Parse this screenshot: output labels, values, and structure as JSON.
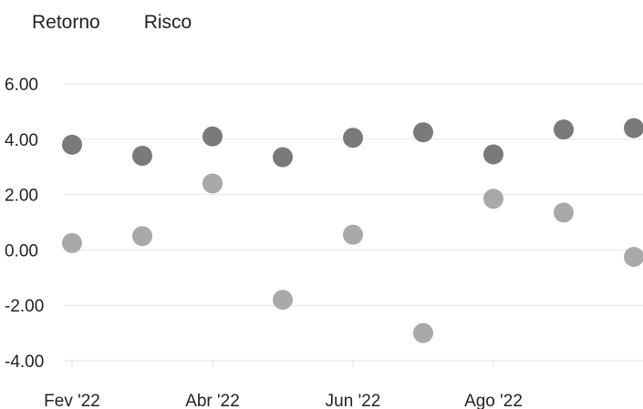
{
  "tabs": [
    {
      "label": "Retorno"
    },
    {
      "label": "Risco"
    }
  ],
  "colors": {
    "retorno": "#7a7a7a",
    "risco": "#a9a9a9",
    "grid": "#e6e6e6",
    "text": "#222222"
  },
  "chart_data": {
    "type": "scatter",
    "title": "",
    "xlabel": "",
    "ylabel": "",
    "ylim": [
      -4,
      6
    ],
    "yticks": [
      "6.00",
      "4.00",
      "2.00",
      "0.00",
      "-2.00",
      "-4.00"
    ],
    "xticks": [
      "Fev '22",
      "Abr '22",
      "Jun '22",
      "Ago '22"
    ],
    "grid": true,
    "series": [
      {
        "x": [
          "Fev '22",
          "Mar '22",
          "Abr '22",
          "Mai '22",
          "Jun '22",
          "Jul '22",
          "Ago '22",
          "Set '22",
          "Out '22"
        ],
        "values": [
          3.8,
          3.4,
          4.1,
          3.35,
          4.05,
          4.25,
          3.45,
          4.35,
          4.4
        ]
      },
      {
        "x": [
          "Fev '22",
          "Mar '22",
          "Abr '22",
          "Mai '22",
          "Jun '22",
          "Jul '22",
          "Ago '22",
          "Set '22",
          "Out '22"
        ],
        "values": [
          0.25,
          0.5,
          2.4,
          -1.8,
          0.55,
          -3.0,
          1.85,
          1.35,
          -0.25
        ]
      }
    ]
  }
}
